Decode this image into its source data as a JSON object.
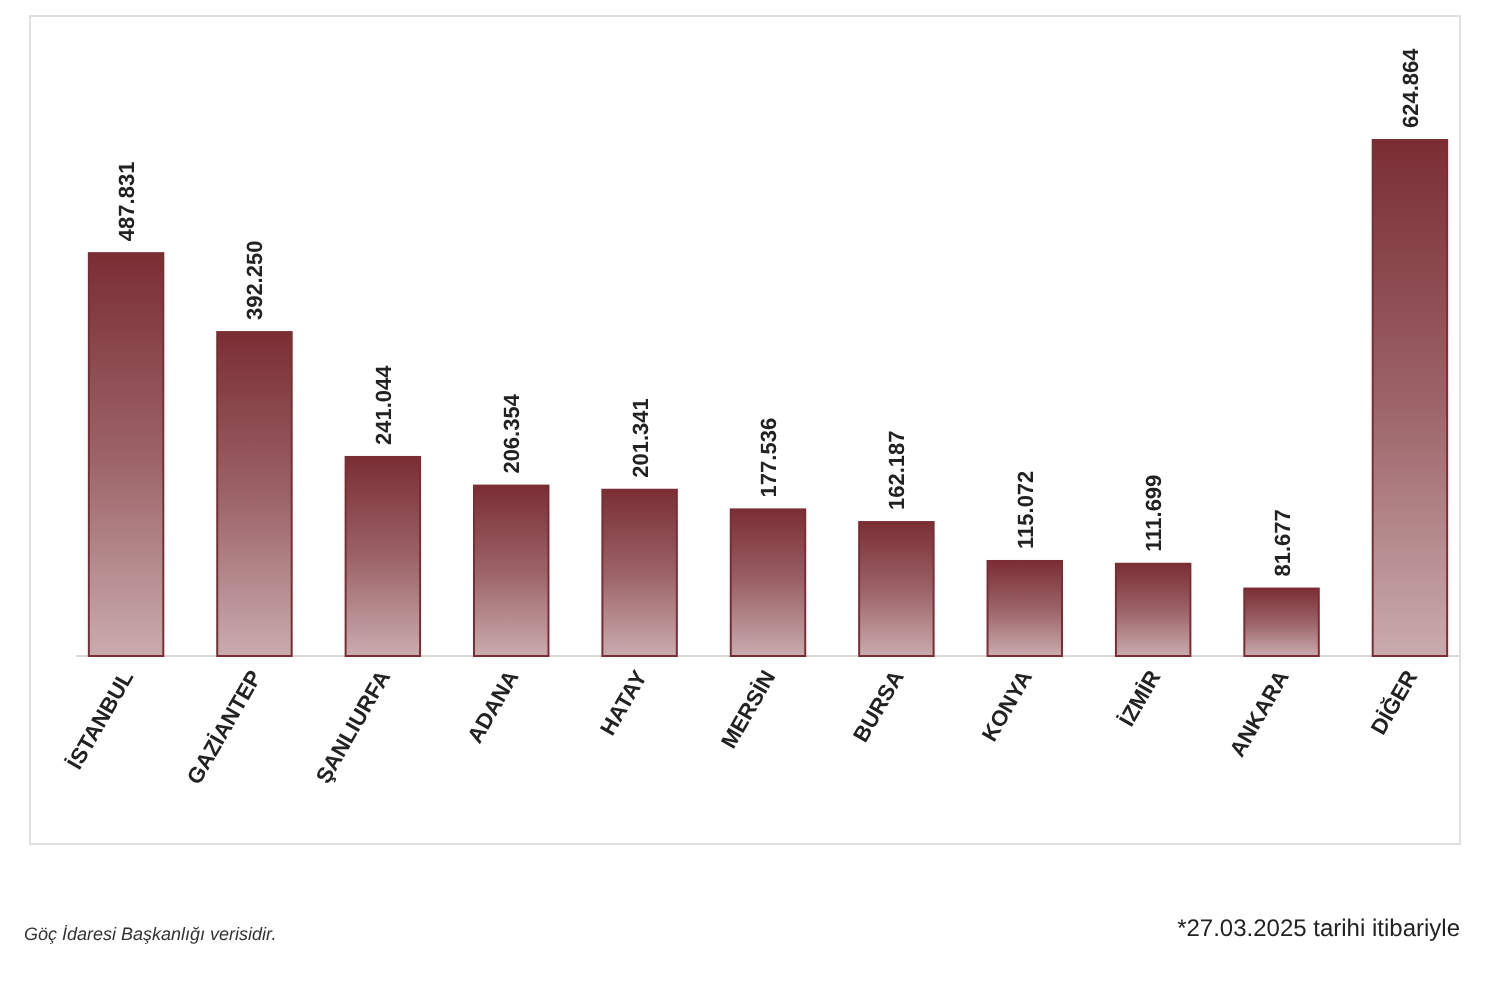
{
  "chart_data": {
    "type": "bar",
    "categories": [
      "İSTANBUL",
      "GAZİANTEP",
      "ŞANLIURFA",
      "ADANA",
      "HATAY",
      "MERSİN",
      "BURSA",
      "KONYA",
      "İZMİR",
      "ANKARA",
      "DİĞER"
    ],
    "values": [
      487831,
      392250,
      241044,
      206354,
      201341,
      177536,
      162187,
      115072,
      111699,
      81677,
      624864
    ],
    "value_labels": [
      "487.831",
      "392.250",
      "241.044",
      "206.354",
      "201.341",
      "177.536",
      "162.187",
      "115.072",
      "111.699",
      "81.677",
      "624.864"
    ],
    "color": "#7a2e34",
    "annotations": [
      "Göç İdaresi Başkanlığı verisidir.",
      "*27.03.2025 tarihi itibariyle"
    ]
  }
}
